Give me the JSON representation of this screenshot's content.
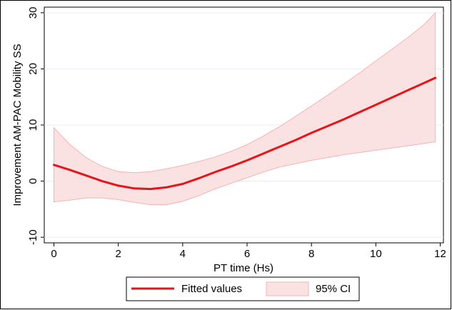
{
  "chart_data": {
    "type": "line",
    "xlabel": "PT time (Hs)",
    "ylabel": "Improvement AM-PAC Mobility SS",
    "xlim": [
      -0.3,
      12.1
    ],
    "ylim": [
      -11,
      31
    ],
    "xticks": [
      0,
      2,
      4,
      6,
      8,
      10,
      12
    ],
    "yticks": [
      -10,
      0,
      10,
      20,
      30
    ],
    "grid": true,
    "legend_position": "bottom",
    "colors": {
      "line": "#e8141b",
      "ci_fill": "#fbe2e2",
      "ci_edge": "#f4b3b3",
      "grid": "#e6edf3",
      "frame": "#000000"
    },
    "series": [
      {
        "name": "Fitted values",
        "x": [
          0,
          0.5,
          1,
          1.5,
          2,
          2.5,
          3,
          3.5,
          4,
          4.5,
          5,
          5.5,
          6,
          6.5,
          7,
          7.5,
          8,
          8.5,
          9,
          9.5,
          10,
          10.5,
          11,
          11.5,
          11.85
        ],
        "y": [
          2.9,
          2.0,
          1.0,
          0.0,
          -0.8,
          -1.3,
          -1.4,
          -1.1,
          -0.5,
          0.5,
          1.6,
          2.6,
          3.7,
          4.9,
          6.1,
          7.3,
          8.6,
          9.8,
          11.0,
          12.3,
          13.6,
          14.9,
          16.2,
          17.5,
          18.4
        ]
      },
      {
        "name": "95% CI",
        "x": [
          0,
          0.5,
          1,
          1.5,
          2,
          2.5,
          3,
          3.5,
          4,
          4.5,
          5,
          5.5,
          6,
          6.5,
          7,
          7.5,
          8,
          8.5,
          9,
          9.5,
          10,
          10.5,
          11,
          11.5,
          11.85
        ],
        "upper": [
          9.5,
          6.5,
          4.2,
          2.6,
          1.7,
          1.5,
          1.7,
          2.2,
          2.8,
          3.5,
          4.3,
          5.3,
          6.5,
          8.0,
          9.7,
          11.5,
          13.4,
          15.3,
          17.3,
          19.3,
          21.4,
          23.5,
          25.6,
          27.9,
          30.0
        ],
        "lower": [
          -3.7,
          -3.4,
          -3.0,
          -3.0,
          -3.3,
          -3.8,
          -4.2,
          -4.2,
          -3.6,
          -2.6,
          -1.4,
          -0.4,
          0.6,
          1.6,
          2.5,
          3.1,
          3.7,
          4.2,
          4.7,
          5.1,
          5.5,
          5.9,
          6.3,
          6.7,
          7.0
        ]
      }
    ]
  },
  "legend": {
    "fitted_label": "Fitted values",
    "ci_label": "95% CI"
  }
}
